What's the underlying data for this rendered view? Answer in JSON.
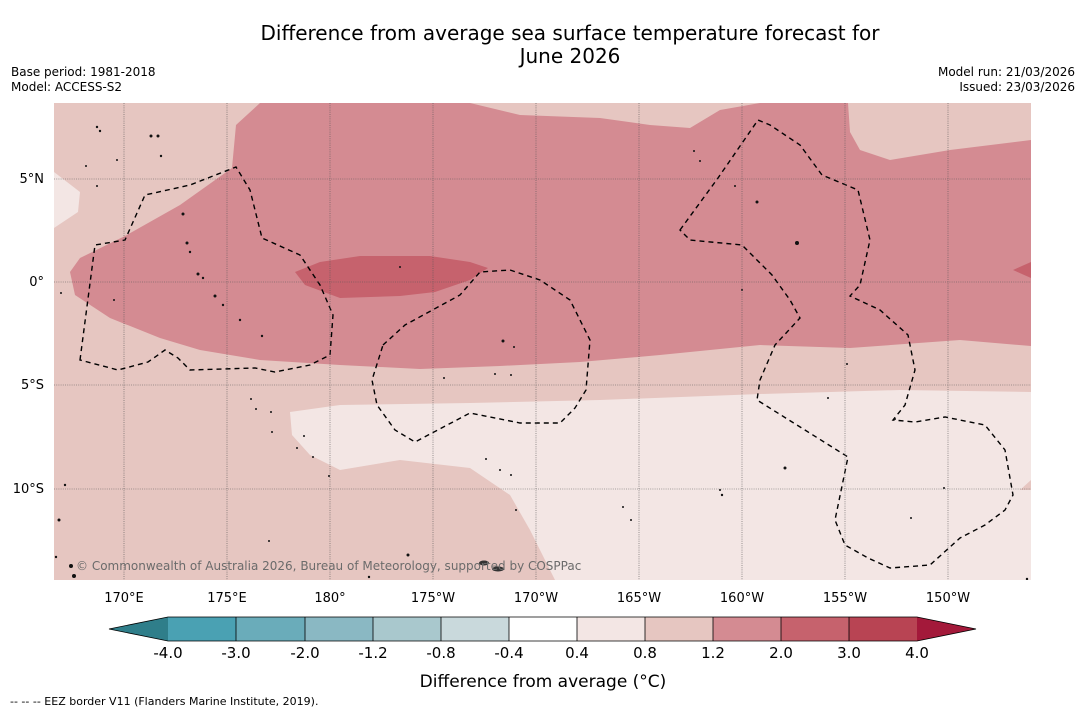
{
  "title_line1": "Difference from average sea surface temperature forecast for",
  "title_line2": "June 2026",
  "base_period": "Base period: 1981-2018",
  "model": "Model: ACCESS-S2",
  "model_run": "Model run: 21/03/2026",
  "issued": "Issued: 23/03/2026",
  "lat_labels": [
    "5°N",
    "0°",
    "5°S",
    "10°S"
  ],
  "lon_labels": [
    "170°E",
    "175°E",
    "180°",
    "175°W",
    "170°W",
    "165°W",
    "160°W",
    "155°W",
    "150°W"
  ],
  "copyright": "© Commonwealth of Australia 2026, Bureau of Meteorology, supported by COSPPac",
  "colorbar": {
    "title": "Difference from average (°C)",
    "labels": [
      "-4.0",
      "-3.0",
      "-2.0",
      "-1.2",
      "-0.8",
      "-0.4",
      "0.4",
      "0.8",
      "1.2",
      "2.0",
      "3.0",
      "4.0"
    ],
    "colors": {
      "below_min": "#2f7e8a",
      "c1": "#4aa1b3",
      "c2": "#6aacba",
      "c3": "#8ab8c3",
      "c4": "#a9c8cd",
      "c5": "#c9d9dc",
      "c6": "#ffffff",
      "c7": "#f3e6e4",
      "c8": "#e6c6c1",
      "c9": "#d48b92",
      "c10": "#c6626d",
      "c11": "#b84453",
      "above_max": "#a3193a"
    }
  },
  "legend_note": "-- -- -- EEZ border V11 (Flanders Marine Institute, 2019)."
}
